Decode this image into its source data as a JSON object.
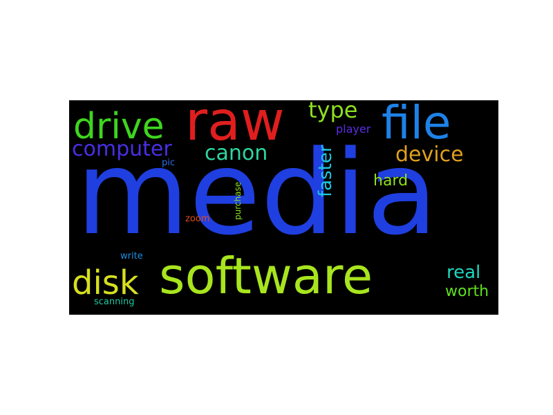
{
  "words": {
    "media": {
      "text": "media",
      "color": "#1f3fe0"
    },
    "software": {
      "text": "software",
      "color": "#a8e51e"
    },
    "raw": {
      "text": "raw",
      "color": "#e01e1e"
    },
    "file": {
      "text": "file",
      "color": "#1e82e8"
    },
    "drive": {
      "text": "drive",
      "color": "#3ed61e"
    },
    "disk": {
      "text": "disk",
      "color": "#d6e01e"
    },
    "computer": {
      "text": "computer",
      "color": "#4a2ee6"
    },
    "canon": {
      "text": "canon",
      "color": "#2ed6a0"
    },
    "device": {
      "text": "device",
      "color": "#e0a01e"
    },
    "type": {
      "text": "type",
      "color": "#8ee01e"
    },
    "faster": {
      "text": "faster",
      "color": "#1ec8e0"
    },
    "hard": {
      "text": "hard",
      "color": "#8ee01e"
    },
    "real": {
      "text": "real",
      "color": "#1ed6c0"
    },
    "worth": {
      "text": "worth",
      "color": "#5ee01e"
    },
    "player": {
      "text": "player",
      "color": "#5a2ee6"
    },
    "pic": {
      "text": "pic",
      "color": "#2e6ae6"
    },
    "purchase": {
      "text": "purchase",
      "color": "#8ee01e"
    },
    "zoom": {
      "text": "zoom",
      "color": "#e04a1e"
    },
    "write": {
      "text": "write",
      "color": "#1e8ee0"
    },
    "scanning": {
      "text": "scanning",
      "color": "#1ec8a0"
    }
  }
}
